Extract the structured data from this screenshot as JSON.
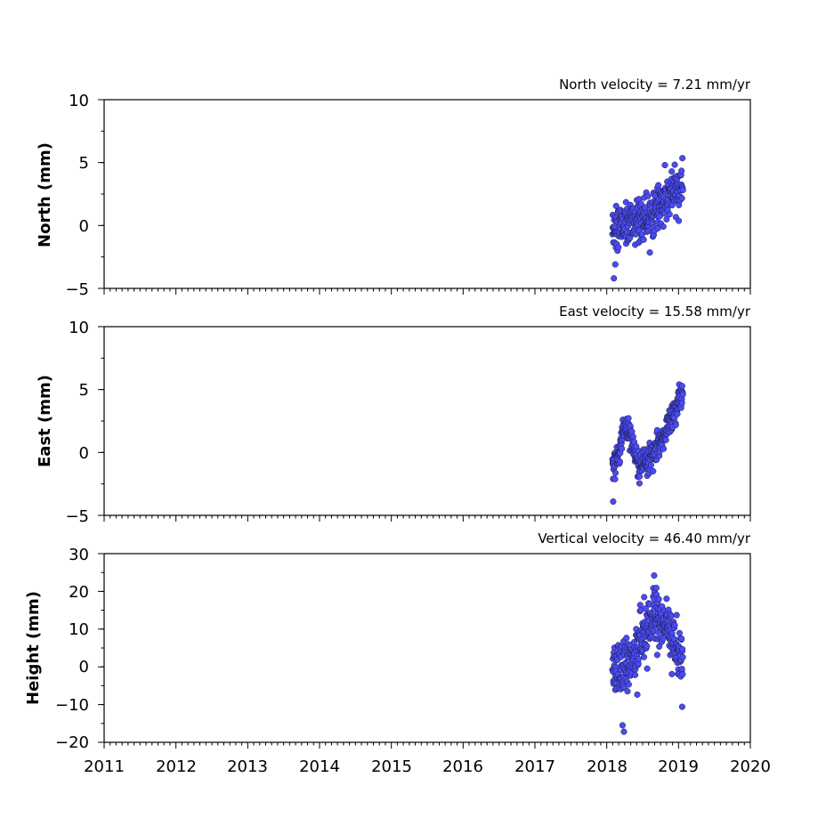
{
  "chart_data": [
    {
      "type": "scatter",
      "title": "North velocity = 7.21 mm/yr",
      "ylabel": "North (mm)",
      "xlim": [
        2011,
        2020
      ],
      "ylim": [
        -5,
        10
      ],
      "yticks": [
        -5,
        0,
        5,
        10
      ],
      "ytick_labels": [
        "−5",
        "0",
        "5",
        "10"
      ],
      "marker_color": "#4b4bf5",
      "series": [
        {
          "x": [],
          "y": []
        }
      ]
    },
    {
      "type": "scatter",
      "title": "East velocity = 15.58 mm/yr",
      "ylabel": "East (mm)",
      "xlim": [
        2011,
        2020
      ],
      "ylim": [
        -5,
        10
      ],
      "yticks": [
        -5,
        0,
        5,
        10
      ],
      "ytick_labels": [
        "−5",
        "0",
        "5",
        "10"
      ],
      "marker_color": "#4b4bf5",
      "series": [
        {
          "x": [],
          "y": []
        }
      ]
    },
    {
      "type": "scatter",
      "title": "Vertical velocity = 46.40 mm/yr",
      "ylabel": "Height (mm)",
      "xlim": [
        2011,
        2020
      ],
      "ylim": [
        -20,
        30
      ],
      "yticks": [
        -20,
        -10,
        0,
        10,
        20,
        30
      ],
      "ytick_labels": [
        "−20",
        "−10",
        "0",
        "10",
        "20",
        "30"
      ],
      "xticks": [
        2011,
        2012,
        2013,
        2014,
        2015,
        2016,
        2017,
        2018,
        2019,
        2020
      ],
      "xtick_labels": [
        "2011",
        "2012",
        "2013",
        "2014",
        "2015",
        "2016",
        "2017",
        "2018",
        "2019",
        "2020"
      ],
      "marker_color": "#4b4bf5",
      "series": [
        {
          "x": [],
          "y": []
        }
      ]
    }
  ]
}
